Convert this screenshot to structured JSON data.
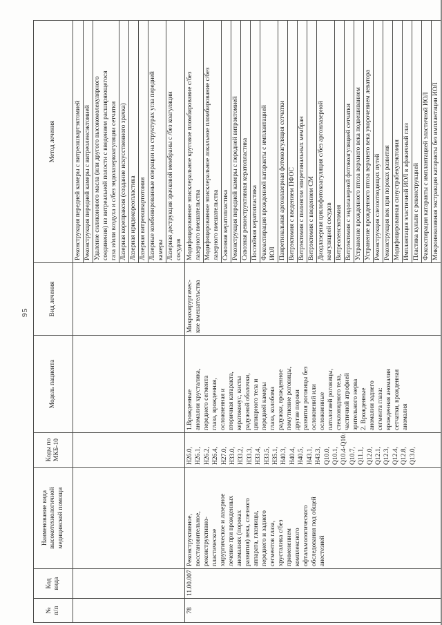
{
  "page": {
    "number": "95"
  },
  "table": {
    "headers": {
      "num": "№\nп/п",
      "code": "Код вида",
      "name": "Наименование вида\nвысокотехнологичной\nмедицинской помощи",
      "icd": "Коды по\nМКБ-10",
      "model": "Модель пациента",
      "treatment_kind": "Вид лечения",
      "treatment_method": "Метод лечения"
    },
    "continued_row": {
      "methods": [
        "Реконструкция передней камеры с витреошвартэктомией",
        "Реконструкция передней камеры с витреоленсэктомией",
        "Удаление силиконового масла (или другого высокомолекулярного\nсоединения) из витреальной полости с введением расширяющегося\nгаза и/или воздуха и с/без эндолазеркоагуляции сетчатки",
        "Лазерная корепраксия (создание искусственного зрачка)",
        "Лазерная иридокореопластика",
        "Лазерная витреошвартотомия",
        "Лазерные комбинированные операции на структурах угла передней\nкамеры",
        "Лазерная деструкция зрачковой мембраны с /без коагуляции\nсосудов"
      ]
    },
    "row": {
      "num": "78",
      "code": "11.00.007",
      "name": "Реконструктивное,\nвосстановительное,\nреконструктивно-\nпластическое\nхирургическое и лазерное\nлечение при врожденных\nаномалиях (пороках\nразвития) века, слезного\nаппарата, глазницы,\nпереднего и заднего\nсегментов глаза,\nхрусталика с/без\nприменением\nкомплексного\nофтальмологического\nобследования под общей\nанестезией",
      "icd_codes": [
        "Н26.0,",
        "Н26.1,",
        "Н26.2,",
        "Н26.4,",
        "Н27.0,",
        "Н33.0,",
        "Н33.2,",
        "Н33.3,",
        "Н33.4,",
        "Н33.5,",
        "Н35.1,",
        "Н40.3,",
        "Н40.4,",
        "Н40.5,",
        "Н43.1,",
        "Н43.3,",
        "Q10.0,",
        "Q10.1,",
        "Q10.4-Q10.6,",
        "Q10.7,",
        "Q11.1,",
        "Q12.0,",
        "Q12.1,",
        "Q12.3,",
        "Q12.4,",
        "Q12.8,",
        "Q13.0,"
      ],
      "model": "1.Врожденные\nаномалии хрусталика,\nпереднего сегмента\nглаза, врожденная,\nосложненная и\nвторичная катаракта,\nкератоконус, кисты\nрадужной оболочки,\nцилиарного тела и\nпередней камеры\nглаза, колобома\nрадужки, врожденное\nпомутнение роговицы,\nдругие пороки\nразвития роговицы без\nосложнений или\nосложненные\nпатологией роговицы,\nстекловидного тела,\nчастичной атрофией\nзрительного нерва\n2. Врожденные\nаномалии заднего\nсегмента глаза:\nврожденная аномалия\nсетчатки, врожденная\nаномалия",
      "treatment_kind": "Микрохирургичес-\nкие вмешательства",
      "methods": [
        "Модифицированное эписклеральное круговое пломбирование с/без\nлазерного вмешательства",
        "Модифицированное эписклеральное локальное пломбирование с/без\nлазерного вмешательства",
        "Сквозная кератопластика",
        "Реконструкция передней камеры с передней витрэктомией",
        "Сквозная реконструктивная кератопластика",
        "Послойная кератопластика",
        "Факоаспирация врожденной катаракты с имплантацией\nИОЛ",
        "Панретинальная аргонлазерная фотокоагуляция  сетчатки",
        "Витрэктомия с введением ПФОС",
        "Витрэктомия с пилингом эпиретинальных мембран",
        "Витрэктомия с введением СМ",
        "Диодлазерная циклофотокоагуляция с/без аргонлазерной\nкоагуляцией сосудов",
        "Витреоленсэктомия",
        "Витрэктомия с эндолазерной фотокоагуляцией сетчатки",
        "Устранение врожденного птоза верхнего века подвешиванием",
        "Устранение врожденного птоза верхнего века укорочением леватора",
        "Реконструкция слезоотводящих путей",
        "Реконструкция век при пороках развития",
        "Модифицированная синустрабекулэктомия",
        "Имплантация эластичной ИОЛ в афакичный глаз",
        "Пластика культи с реконструкцией",
        "Факоаспирация катаракты с имплантацией эластичной ИОЛ",
        "Микроинвазивная экстракция катаракты без имплантации ИОЛ"
      ]
    }
  }
}
